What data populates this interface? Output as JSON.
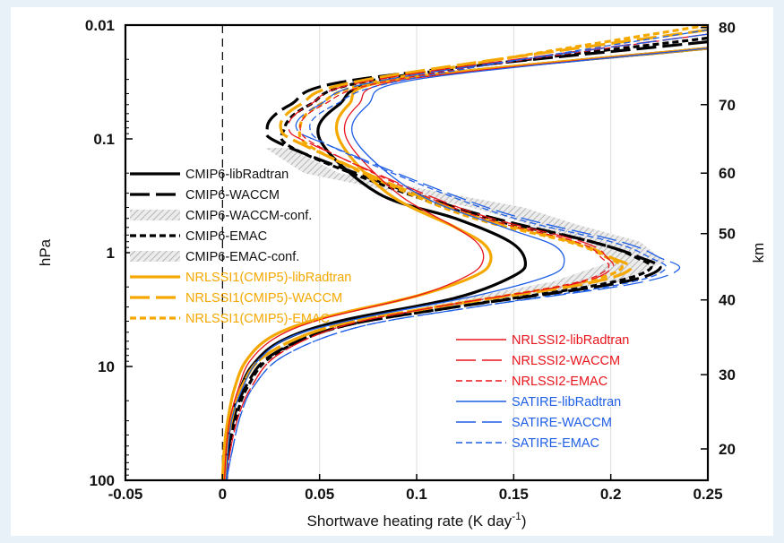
{
  "chart_data": {
    "type": "line",
    "xlabel": "Shortwave heating rate (K day",
    "xlabel_sup": "-1",
    "xlabel_tail": ")",
    "ylabel_left": "hPa",
    "ylabel_right": "km",
    "xlim": [
      -0.05,
      0.25
    ],
    "ylim_hpa": [
      100,
      0.01
    ],
    "y_scale": "log",
    "y_reversed": true,
    "x_ticks": [
      "-0.05",
      "0",
      "0.05",
      "0.1",
      "0.15",
      "0.2",
      "0.25"
    ],
    "x_tick_values": [
      -0.05,
      0,
      0.05,
      0.1,
      0.15,
      0.2,
      0.25
    ],
    "y_ticks_left": [
      "0.01",
      "0.1",
      "1",
      "10",
      "100"
    ],
    "y_tick_values_left": [
      0.01,
      0.1,
      1,
      10,
      100
    ],
    "y_ticks_right": [
      "20",
      "30",
      "40",
      "50",
      "60",
      "70",
      "80"
    ],
    "y_tick_values_right_hpa": [
      53.0,
      11.8,
      2.6,
      0.68,
      0.2,
      0.05,
      0.0105
    ],
    "grid": "vertical",
    "zero_line": "dashed",
    "legend_left": [
      {
        "name": "CMIP6-libRadtran",
        "color": "#000000",
        "dash": "solid",
        "kind": "line"
      },
      {
        "name": "CMIP6-WACCM",
        "color": "#000000",
        "dash": "long",
        "kind": "line"
      },
      {
        "name": "CMIP6-WACCM-conf.",
        "color": "#b4b4b4",
        "dash": "solid",
        "kind": "hatch"
      },
      {
        "name": "CMIP6-EMAC",
        "color": "#000000",
        "dash": "short",
        "kind": "line"
      },
      {
        "name": "CMIP6-EMAC-conf.",
        "color": "#b4b4b4",
        "dash": "solid",
        "kind": "hatch"
      },
      {
        "name": "NRLSSI1(CMIP5)-libRadtran",
        "color": "#f5a800",
        "dash": "solid",
        "kind": "line"
      },
      {
        "name": "NRLSSI1(CMIP5)-WACCM",
        "color": "#f5a800",
        "dash": "long",
        "kind": "line"
      },
      {
        "name": "NRLSSI1(CMIP5)-EMAC",
        "color": "#f5a800",
        "dash": "short",
        "kind": "line"
      }
    ],
    "legend_right": [
      {
        "name": "NRLSSI2-libRadtran",
        "color": "#e8141c",
        "dash": "solid",
        "kind": "line"
      },
      {
        "name": "NRLSSI2-WACCM",
        "color": "#e8141c",
        "dash": "long",
        "kind": "line"
      },
      {
        "name": "NRLSSI2-EMAC",
        "color": "#e8141c",
        "dash": "short",
        "kind": "line"
      },
      {
        "name": "SATIRE-libRadtran",
        "color": "#1f5fe6",
        "dash": "solid",
        "kind": "line"
      },
      {
        "name": "SATIRE-WACCM",
        "color": "#1f5fe6",
        "dash": "long",
        "kind": "line"
      },
      {
        "name": "SATIRE-EMAC",
        "color": "#1f5fe6",
        "dash": "short",
        "kind": "line"
      }
    ],
    "confidence_bands": [
      {
        "name": "CMIP6-WACCM-conf.",
        "y_hpa": [
          0.12,
          0.2,
          0.4,
          0.8,
          1.2,
          1.8,
          3.0
        ],
        "x_low": [
          0.024,
          0.045,
          0.13,
          0.185,
          0.2,
          0.17,
          0.1
        ],
        "x_high": [
          0.034,
          0.06,
          0.155,
          0.21,
          0.225,
          0.2,
          0.12
        ]
      },
      {
        "name": "CMIP6-EMAC-conf.",
        "y_hpa": [
          0.12,
          0.2,
          0.4,
          0.8,
          1.2,
          1.8,
          3.0
        ],
        "x_low": [
          0.022,
          0.042,
          0.128,
          0.19,
          0.205,
          0.175,
          0.1
        ],
        "x_high": [
          0.03,
          0.055,
          0.15,
          0.215,
          0.228,
          0.205,
          0.118
        ]
      }
    ],
    "series": [
      {
        "name": "CMIP6-libRadtran",
        "color": "#000000",
        "dash": "solid",
        "width": 3.2,
        "x": [
          0.25,
          0.09,
          0.06,
          0.05,
          0.08,
          0.12,
          0.148,
          0.156,
          0.15,
          0.12,
          0.06,
          0.03,
          0.015,
          0.008,
          0.004,
          0.002,
          0.001
        ],
        "y": [
          0.016,
          0.03,
          0.05,
          0.1,
          0.3,
          0.5,
          0.8,
          1.2,
          1.6,
          2.5,
          4,
          6,
          10,
          18,
          30,
          55,
          100
        ]
      },
      {
        "name": "CMIP6-WACCM",
        "color": "#000000",
        "dash": "long",
        "width": 3.2,
        "x": [
          0.25,
          0.07,
          0.035,
          0.023,
          0.035,
          0.12,
          0.19,
          0.215,
          0.225,
          0.2,
          0.12,
          0.06,
          0.025,
          0.012,
          0.006,
          0.003,
          0.001
        ],
        "y": [
          0.014,
          0.03,
          0.05,
          0.08,
          0.12,
          0.4,
          0.8,
          1.1,
          1.4,
          1.9,
          3.0,
          4.5,
          8,
          15,
          28,
          55,
          100
        ]
      },
      {
        "name": "CMIP6-EMAC",
        "color": "#000000",
        "dash": "short",
        "width": 3.2,
        "x": [
          0.25,
          0.08,
          0.045,
          0.032,
          0.04,
          0.12,
          0.19,
          0.213,
          0.22,
          0.195,
          0.12,
          0.06,
          0.026,
          0.013,
          0.007,
          0.003,
          0.002
        ],
        "y": [
          0.013,
          0.03,
          0.05,
          0.08,
          0.13,
          0.42,
          0.8,
          1.1,
          1.4,
          1.9,
          3.0,
          4.5,
          8,
          15,
          28,
          55,
          100
        ]
      },
      {
        "name": "NRLSSI1(CMIP5)-libRadtran",
        "color": "#f5a800",
        "dash": "solid",
        "width": 3.2,
        "x": [
          0.25,
          0.09,
          0.065,
          0.06,
          0.085,
          0.12,
          0.135,
          0.138,
          0.13,
          0.1,
          0.05,
          0.025,
          0.012,
          0.006,
          0.003,
          0.001,
          0.0
        ],
        "y": [
          0.016,
          0.03,
          0.05,
          0.1,
          0.3,
          0.6,
          0.85,
          1.2,
          1.6,
          2.4,
          3.8,
          5.5,
          9,
          16,
          28,
          50,
          100
        ]
      },
      {
        "name": "NRLSSI1(CMIP5)-WACCM",
        "color": "#f5a800",
        "dash": "long",
        "width": 3.2,
        "x": [
          0.25,
          0.075,
          0.04,
          0.03,
          0.045,
          0.12,
          0.18,
          0.2,
          0.21,
          0.185,
          0.11,
          0.055,
          0.022,
          0.01,
          0.005,
          0.002,
          0.001
        ],
        "y": [
          0.011,
          0.03,
          0.05,
          0.08,
          0.12,
          0.42,
          0.8,
          1.1,
          1.4,
          1.9,
          3.0,
          4.5,
          8,
          15,
          28,
          55,
          100
        ]
      },
      {
        "name": "NRLSSI1(CMIP5)-EMAC",
        "color": "#f5a800",
        "dash": "short",
        "width": 3.2,
        "x": [
          0.25,
          0.085,
          0.05,
          0.04,
          0.05,
          0.12,
          0.178,
          0.198,
          0.205,
          0.18,
          0.11,
          0.055,
          0.022,
          0.01,
          0.005,
          0.002,
          0.001
        ],
        "y": [
          0.01,
          0.03,
          0.05,
          0.08,
          0.13,
          0.44,
          0.8,
          1.1,
          1.4,
          1.9,
          3.0,
          4.5,
          8,
          15,
          28,
          55,
          100
        ]
      },
      {
        "name": "NRLSSI2-libRadtran",
        "color": "#e8141c",
        "dash": "solid",
        "width": 1.3,
        "x": [
          0.25,
          0.095,
          0.07,
          0.064,
          0.09,
          0.12,
          0.132,
          0.134,
          0.126,
          0.1,
          0.052,
          0.028,
          0.014,
          0.008,
          0.004,
          0.002,
          0.001
        ],
        "y": [
          0.016,
          0.03,
          0.05,
          0.1,
          0.3,
          0.6,
          0.85,
          1.2,
          1.6,
          2.4,
          3.8,
          5.5,
          9,
          16,
          28,
          50,
          100
        ]
      },
      {
        "name": "NRLSSI2-WACCM",
        "color": "#e8141c",
        "dash": "long",
        "width": 1.3,
        "x": [
          0.25,
          0.08,
          0.045,
          0.034,
          0.05,
          0.125,
          0.185,
          0.198,
          0.2,
          0.18,
          0.11,
          0.06,
          0.028,
          0.015,
          0.008,
          0.004,
          0.002
        ],
        "y": [
          0.012,
          0.03,
          0.05,
          0.08,
          0.12,
          0.42,
          0.8,
          1.1,
          1.4,
          1.9,
          3.0,
          4.5,
          8,
          15,
          28,
          55,
          100
        ]
      },
      {
        "name": "NRLSSI2-EMAC",
        "color": "#e8141c",
        "dash": "short",
        "width": 1.3,
        "x": [
          0.25,
          0.09,
          0.052,
          0.04,
          0.055,
          0.125,
          0.182,
          0.195,
          0.198,
          0.178,
          0.11,
          0.06,
          0.028,
          0.015,
          0.008,
          0.004,
          0.002
        ],
        "y": [
          0.012,
          0.03,
          0.05,
          0.08,
          0.13,
          0.44,
          0.8,
          1.1,
          1.4,
          1.9,
          3.0,
          4.5,
          8,
          15,
          28,
          55,
          100
        ]
      },
      {
        "name": "SATIRE-libRadtran",
        "color": "#1f5fe6",
        "dash": "solid",
        "width": 1.3,
        "x": [
          0.25,
          0.1,
          0.075,
          0.068,
          0.1,
          0.145,
          0.17,
          0.176,
          0.168,
          0.13,
          0.07,
          0.035,
          0.018,
          0.01,
          0.005,
          0.003,
          0.002
        ],
        "y": [
          0.016,
          0.03,
          0.05,
          0.1,
          0.3,
          0.6,
          0.85,
          1.2,
          1.6,
          2.4,
          3.8,
          5.5,
          9,
          16,
          28,
          50,
          100
        ]
      },
      {
        "name": "SATIRE-WACCM",
        "color": "#1f5fe6",
        "dash": "long",
        "width": 1.3,
        "x": [
          0.25,
          0.085,
          0.05,
          0.038,
          0.058,
          0.14,
          0.205,
          0.225,
          0.235,
          0.21,
          0.13,
          0.07,
          0.032,
          0.016,
          0.009,
          0.005,
          0.002
        ],
        "y": [
          0.012,
          0.03,
          0.05,
          0.08,
          0.12,
          0.42,
          0.8,
          1.1,
          1.4,
          1.9,
          3.0,
          4.5,
          8,
          15,
          28,
          55,
          100
        ]
      },
      {
        "name": "SATIRE-EMAC",
        "color": "#1f5fe6",
        "dash": "short",
        "width": 1.3,
        "x": [
          0.25,
          0.095,
          0.058,
          0.045,
          0.062,
          0.14,
          0.2,
          0.22,
          0.228,
          0.205,
          0.13,
          0.07,
          0.032,
          0.016,
          0.009,
          0.005,
          0.002
        ],
        "y": [
          0.011,
          0.03,
          0.05,
          0.08,
          0.13,
          0.44,
          0.8,
          1.1,
          1.4,
          1.9,
          3.0,
          4.5,
          8,
          15,
          28,
          55,
          100
        ]
      }
    ]
  }
}
